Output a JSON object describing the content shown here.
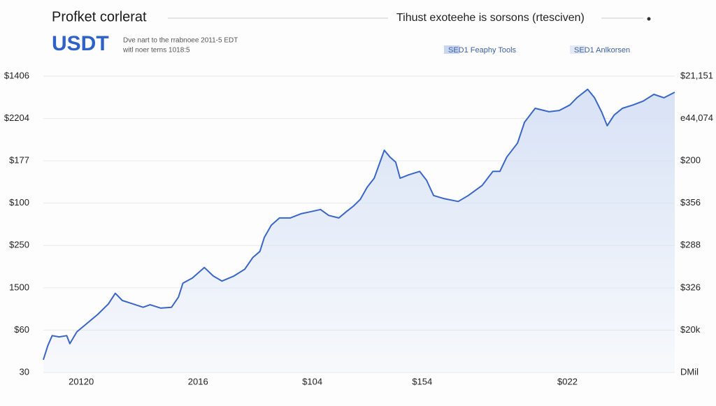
{
  "chart_data": {
    "type": "area",
    "title": "Profket corlerat",
    "heading": "USDT",
    "subtitle": [
      "Dve nart to the rrabnoee 2011-5 EDT",
      "witl noer terns 1018:5"
    ],
    "caption": "Tihust exoteehe is sorsons (rtesciven)",
    "legend": [
      {
        "name": "SED1 Feaphy Tools",
        "color": "#c8d6f0"
      },
      {
        "name": "SED1 Anlkorsen",
        "color": "#e3eaf6"
      }
    ],
    "grid": true,
    "xlim": [
      0,
      100
    ],
    "xticks": [
      {
        "value": 6,
        "label": "20120"
      },
      {
        "value": 24.5,
        "label": "2016"
      },
      {
        "value": 42.6,
        "label": "$104"
      },
      {
        "value": 60,
        "label": "$154"
      },
      {
        "value": 83,
        "label": "$022"
      }
    ],
    "ylim": [
      0,
      7
    ],
    "yticks": [
      {
        "value": 0,
        "label": "30"
      },
      {
        "value": 1,
        "label": "$60"
      },
      {
        "value": 2,
        "label": "1500"
      },
      {
        "value": 3,
        "label": "$250"
      },
      {
        "value": 4,
        "label": "$100"
      },
      {
        "value": 5,
        "label": "$177"
      },
      {
        "value": 6,
        "label": "$2204"
      },
      {
        "value": 7,
        "label": "$1406"
      }
    ],
    "y2lim": [
      0,
      7
    ],
    "y2ticks": [
      {
        "value": 0,
        "label": "DMil"
      },
      {
        "value": 1,
        "label": "$20k"
      },
      {
        "value": 2,
        "label": "$326"
      },
      {
        "value": 3,
        "label": "$288"
      },
      {
        "value": 4,
        "label": "$356"
      },
      {
        "value": 5,
        "label": "$200"
      },
      {
        "value": 6,
        "label": "e44,074"
      },
      {
        "value": 7,
        "label": "$21,151"
      }
    ],
    "series": [
      {
        "color": "#3a66c8",
        "fill": "#d6e1f5",
        "x": [
          0,
          0.7,
          1.4,
          2.5,
          3.7,
          4.2,
          5.3,
          7.0,
          8.6,
          10.3,
          11.4,
          12.5,
          14.2,
          15.8,
          16.9,
          18.6,
          20.3,
          21.4,
          22.1,
          23.6,
          25.5,
          26.9,
          28.3,
          30.2,
          31.9,
          33.2,
          34.3,
          35.0,
          36.1,
          37.4,
          39.1,
          40.8,
          42.4,
          43.9,
          45.2,
          46.8,
          48.0,
          49.1,
          50.2,
          51.3,
          52.4,
          53.2,
          54.0,
          54.9,
          55.8,
          56.5,
          57.9,
          59.6,
          60.7,
          61.8,
          63.4,
          65.7,
          67.3,
          69.5,
          71.2,
          72.3,
          73.4,
          75.1,
          76.2,
          77.9,
          80.1,
          81.7,
          83.4,
          84.5,
          86.2,
          87.3,
          88.4,
          89.3,
          90.4,
          91.7,
          93.4,
          95.0,
          96.7,
          98.3,
          100
        ],
        "values": [
          0.3,
          0.63,
          0.87,
          0.84,
          0.87,
          0.68,
          0.96,
          1.17,
          1.37,
          1.62,
          1.87,
          1.7,
          1.62,
          1.54,
          1.6,
          1.52,
          1.54,
          1.78,
          2.11,
          2.23,
          2.48,
          2.28,
          2.16,
          2.28,
          2.44,
          2.72,
          2.86,
          3.19,
          3.48,
          3.65,
          3.65,
          3.75,
          3.8,
          3.85,
          3.71,
          3.65,
          3.8,
          3.93,
          4.09,
          4.38,
          4.59,
          4.92,
          5.25,
          5.09,
          4.97,
          4.59,
          4.67,
          4.75,
          4.54,
          4.18,
          4.11,
          4.04,
          4.18,
          4.42,
          4.75,
          4.75,
          5.09,
          5.42,
          5.91,
          6.24,
          6.16,
          6.19,
          6.32,
          6.49,
          6.69,
          6.49,
          6.16,
          5.83,
          6.08,
          6.24,
          6.32,
          6.41,
          6.57,
          6.49,
          6.62
        ]
      }
    ]
  }
}
